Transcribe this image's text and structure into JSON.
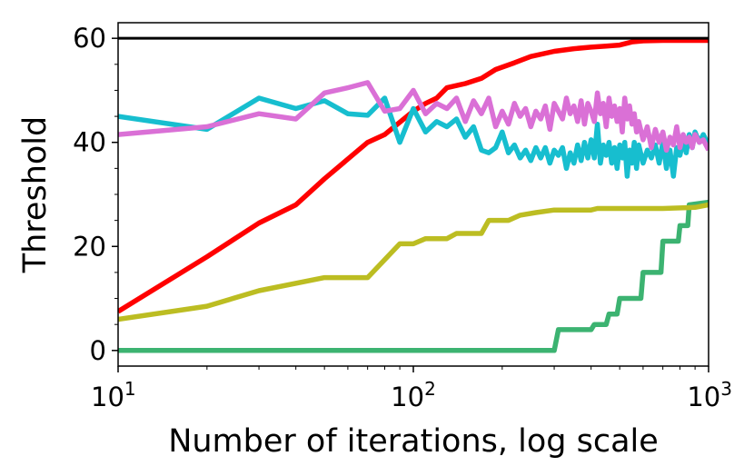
{
  "chart_data": {
    "type": "line",
    "title": "",
    "xlabel": "Number of iterations, log scale",
    "ylabel": "Threshold",
    "xscale": "log",
    "xlim": [
      10,
      1000
    ],
    "ylim": [
      -3,
      63
    ],
    "grid": false,
    "legend": "none",
    "x_ticks": [
      {
        "value": 10,
        "base": "10",
        "exp": "1"
      },
      {
        "value": 100,
        "base": "10",
        "exp": "2"
      },
      {
        "value": 1000,
        "base": "10",
        "exp": "3"
      }
    ],
    "y_ticks": [
      {
        "value": 0,
        "label": "0"
      },
      {
        "value": 20,
        "label": "20"
      },
      {
        "value": 40,
        "label": "40"
      },
      {
        "value": 60,
        "label": "60"
      }
    ],
    "reference_line": {
      "y": 60,
      "color": "#000000"
    },
    "series": [
      {
        "color": "#3cb371",
        "points": [
          [
            10,
            0
          ],
          [
            300,
            0
          ],
          [
            310,
            4
          ],
          [
            400,
            4
          ],
          [
            410,
            5
          ],
          [
            450,
            5
          ],
          [
            460,
            7
          ],
          [
            490,
            7
          ],
          [
            500,
            10
          ],
          [
            590,
            10
          ],
          [
            600,
            15
          ],
          [
            690,
            15
          ],
          [
            700,
            21
          ],
          [
            790,
            21
          ],
          [
            800,
            24
          ],
          [
            850,
            24
          ],
          [
            860,
            28
          ],
          [
            1000,
            28.5
          ]
        ]
      },
      {
        "color": "#bcbd22",
        "points": [
          [
            10,
            6
          ],
          [
            20,
            8.5
          ],
          [
            30,
            11.5
          ],
          [
            50,
            14
          ],
          [
            70,
            14
          ],
          [
            90,
            20.5
          ],
          [
            100,
            20.5
          ],
          [
            110,
            21.5
          ],
          [
            130,
            21.5
          ],
          [
            140,
            22.5
          ],
          [
            170,
            22.5
          ],
          [
            180,
            25
          ],
          [
            210,
            25
          ],
          [
            230,
            26
          ],
          [
            260,
            26.5
          ],
          [
            300,
            27
          ],
          [
            400,
            27
          ],
          [
            420,
            27.3
          ],
          [
            700,
            27.3
          ],
          [
            900,
            27.5
          ],
          [
            1000,
            28
          ]
        ]
      },
      {
        "color": "#ff0000",
        "points": [
          [
            10,
            7.5
          ],
          [
            20,
            18
          ],
          [
            30,
            24.5
          ],
          [
            40,
            28
          ],
          [
            50,
            33
          ],
          [
            70,
            40
          ],
          [
            80,
            41.5
          ],
          [
            100,
            46
          ],
          [
            110,
            47.5
          ],
          [
            120,
            48.5
          ],
          [
            130,
            50.5
          ],
          [
            150,
            51.3
          ],
          [
            170,
            52.3
          ],
          [
            190,
            54
          ],
          [
            220,
            55.3
          ],
          [
            250,
            56.5
          ],
          [
            300,
            57.5
          ],
          [
            350,
            58
          ],
          [
            400,
            58.3
          ],
          [
            450,
            58.5
          ],
          [
            500,
            58.7
          ],
          [
            550,
            59.3
          ],
          [
            600,
            59.5
          ],
          [
            700,
            59.6
          ],
          [
            1000,
            59.6
          ]
        ]
      },
      {
        "color": "#17becf",
        "points": [
          [
            10,
            45
          ],
          [
            20,
            42.5
          ],
          [
            30,
            48.5
          ],
          [
            40,
            46.5
          ],
          [
            50,
            48
          ],
          [
            60,
            45.5
          ],
          [
            70,
            45.2
          ],
          [
            80,
            48.5
          ],
          [
            90,
            40
          ],
          [
            100,
            46.5
          ],
          [
            110,
            42
          ],
          [
            120,
            44
          ],
          [
            130,
            43
          ],
          [
            140,
            44.5
          ],
          [
            150,
            41
          ],
          [
            160,
            43
          ],
          [
            170,
            38.5
          ],
          [
            180,
            38
          ],
          [
            190,
            39
          ],
          [
            200,
            42
          ],
          [
            210,
            38
          ],
          [
            220,
            39.5
          ],
          [
            230,
            37
          ],
          [
            240,
            38.5
          ],
          [
            250,
            36.5
          ],
          [
            260,
            39
          ],
          [
            270,
            37
          ],
          [
            280,
            39
          ],
          [
            290,
            36
          ],
          [
            300,
            38.5
          ],
          [
            310,
            37.5
          ],
          [
            320,
            39
          ],
          [
            330,
            35
          ],
          [
            340,
            38
          ],
          [
            350,
            36
          ],
          [
            360,
            39.5
          ],
          [
            370,
            36.5
          ],
          [
            380,
            40
          ],
          [
            390,
            37
          ],
          [
            400,
            40.5
          ],
          [
            410,
            37
          ],
          [
            420,
            43.5
          ],
          [
            430,
            36
          ],
          [
            440,
            39.5
          ],
          [
            450,
            37.5
          ],
          [
            460,
            40
          ],
          [
            470,
            36
          ],
          [
            480,
            39
          ],
          [
            490,
            35
          ],
          [
            500,
            39.5
          ],
          [
            510,
            37
          ],
          [
            520,
            40
          ],
          [
            530,
            33.5
          ],
          [
            540,
            38.5
          ],
          [
            550,
            36
          ],
          [
            560,
            40
          ],
          [
            570,
            35
          ],
          [
            580,
            39.5
          ],
          [
            600,
            36
          ],
          [
            620,
            38.5
          ],
          [
            640,
            37
          ],
          [
            660,
            39.5
          ],
          [
            680,
            36
          ],
          [
            700,
            40
          ],
          [
            720,
            35
          ],
          [
            740,
            38.5
          ],
          [
            760,
            33.5
          ],
          [
            780,
            39
          ],
          [
            800,
            37.5
          ],
          [
            820,
            40.5
          ],
          [
            840,
            38
          ],
          [
            860,
            41.5
          ],
          [
            880,
            39
          ],
          [
            900,
            42
          ],
          [
            930,
            40
          ],
          [
            960,
            41.5
          ],
          [
            1000,
            39.5
          ]
        ]
      },
      {
        "color": "#da70d6",
        "points": [
          [
            10,
            41.5
          ],
          [
            20,
            43
          ],
          [
            30,
            45.5
          ],
          [
            40,
            44.5
          ],
          [
            50,
            49.5
          ],
          [
            60,
            50.5
          ],
          [
            70,
            51.5
          ],
          [
            80,
            46
          ],
          [
            90,
            46.5
          ],
          [
            100,
            50
          ],
          [
            110,
            45.5
          ],
          [
            120,
            47.5
          ],
          [
            130,
            46.5
          ],
          [
            140,
            48.5
          ],
          [
            150,
            44
          ],
          [
            160,
            48
          ],
          [
            170,
            45.5
          ],
          [
            180,
            48.5
          ],
          [
            190,
            43
          ],
          [
            200,
            46
          ],
          [
            210,
            43.5
          ],
          [
            220,
            47.5
          ],
          [
            230,
            45
          ],
          [
            240,
            46.5
          ],
          [
            250,
            43
          ],
          [
            260,
            46
          ],
          [
            270,
            44.5
          ],
          [
            280,
            47
          ],
          [
            290,
            42.5
          ],
          [
            300,
            47.5
          ],
          [
            310,
            46
          ],
          [
            320,
            44.5
          ],
          [
            330,
            48.5
          ],
          [
            340,
            45.5
          ],
          [
            350,
            47
          ],
          [
            360,
            44
          ],
          [
            370,
            48
          ],
          [
            380,
            43.5
          ],
          [
            390,
            47.5
          ],
          [
            400,
            46
          ],
          [
            410,
            44
          ],
          [
            420,
            49.5
          ],
          [
            430,
            45.5
          ],
          [
            440,
            47.5
          ],
          [
            450,
            43
          ],
          [
            460,
            48.5
          ],
          [
            470,
            45
          ],
          [
            480,
            47
          ],
          [
            490,
            44
          ],
          [
            500,
            46.5
          ],
          [
            510,
            42
          ],
          [
            520,
            48.5
          ],
          [
            530,
            44.5
          ],
          [
            540,
            47
          ],
          [
            550,
            43.5
          ],
          [
            560,
            45.5
          ],
          [
            570,
            42
          ],
          [
            580,
            44
          ],
          [
            600,
            40.5
          ],
          [
            620,
            43
          ],
          [
            640,
            39
          ],
          [
            660,
            42.5
          ],
          [
            680,
            40
          ],
          [
            700,
            42
          ],
          [
            720,
            38.5
          ],
          [
            740,
            41
          ],
          [
            760,
            39.5
          ],
          [
            780,
            43
          ],
          [
            800,
            39
          ],
          [
            820,
            41.5
          ],
          [
            840,
            40
          ],
          [
            860,
            41
          ],
          [
            880,
            39
          ],
          [
            900,
            41.5
          ],
          [
            930,
            40
          ],
          [
            960,
            40.5
          ],
          [
            1000,
            38.5
          ]
        ]
      }
    ]
  }
}
